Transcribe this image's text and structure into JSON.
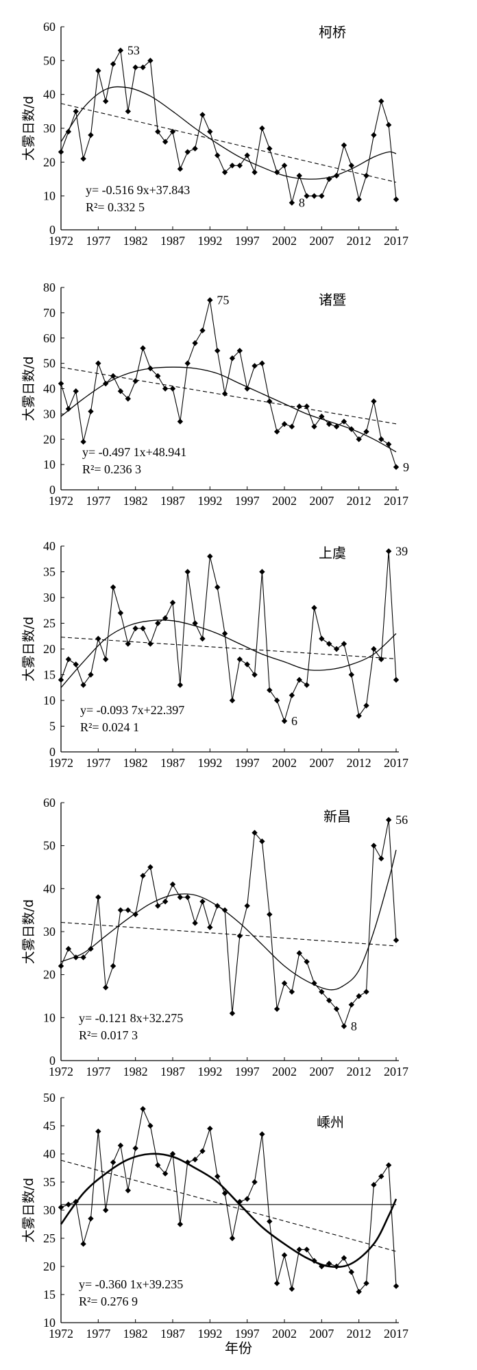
{
  "figure": {
    "xlabel": "年份",
    "ylabel": "大雾日数/d"
  },
  "chart_data": [
    {
      "type": "line",
      "title": "柯桥",
      "ylabel": "大雾日数/d",
      "xlabel": "",
      "xlim": [
        1972,
        2017
      ],
      "ylim": [
        0,
        60
      ],
      "x_ticks": [
        1972,
        1977,
        1982,
        1987,
        1992,
        1997,
        2002,
        2007,
        2012,
        2017
      ],
      "y_ticks": [
        0,
        10,
        20,
        30,
        40,
        50,
        60
      ],
      "x": [
        1972,
        1973,
        1974,
        1975,
        1976,
        1977,
        1978,
        1979,
        1980,
        1981,
        1982,
        1983,
        1984,
        1985,
        1986,
        1987,
        1988,
        1989,
        1990,
        1991,
        1992,
        1993,
        1994,
        1995,
        1996,
        1997,
        1998,
        1999,
        2000,
        2001,
        2002,
        2003,
        2004,
        2005,
        2006,
        2007,
        2008,
        2009,
        2010,
        2011,
        2012,
        2013,
        2014,
        2015,
        2016,
        2017
      ],
      "series": [
        {
          "values": [
            23,
            29,
            35,
            21,
            28,
            47,
            38,
            49,
            53,
            35,
            48,
            48,
            50,
            29,
            26,
            29,
            18,
            23,
            24,
            34,
            29,
            22,
            17,
            19,
            19,
            22,
            17,
            30,
            24,
            17,
            19,
            8,
            16,
            10,
            10,
            10,
            15,
            16,
            25,
            19,
            9,
            16,
            28,
            38,
            31,
            9
          ]
        }
      ],
      "trend": {
        "slope": -0.5169,
        "intercept": 37.843
      },
      "poly_fit": [
        [
          1972,
          26
        ],
        [
          1975,
          36
        ],
        [
          1978,
          41.5
        ],
        [
          1981,
          42
        ],
        [
          1984,
          39.5
        ],
        [
          1987,
          35
        ],
        [
          1990,
          30
        ],
        [
          1993,
          25.5
        ],
        [
          1996,
          21.5
        ],
        [
          1999,
          18.5
        ],
        [
          2002,
          16
        ],
        [
          2005,
          15
        ],
        [
          2008,
          15.5
        ],
        [
          2011,
          18
        ],
        [
          2014,
          21.5
        ],
        [
          2016,
          23
        ],
        [
          2017,
          22.5
        ]
      ],
      "equation": "y= -0.516 9x+37.843",
      "r2": "R²= 0.332 5",
      "annotations": [
        {
          "text": "53",
          "x": 1980,
          "y": 53
        },
        {
          "text": "8",
          "x": 2003,
          "y": 8
        }
      ]
    },
    {
      "type": "line",
      "title": "诸暨",
      "ylabel": "大雾日数/d",
      "xlabel": "",
      "xlim": [
        1972,
        2017
      ],
      "ylim": [
        0,
        80
      ],
      "x_ticks": [
        1972,
        1977,
        1982,
        1987,
        1992,
        1997,
        2002,
        2007,
        2012,
        2017
      ],
      "y_ticks": [
        0,
        10,
        20,
        30,
        40,
        50,
        60,
        70,
        80
      ],
      "x": [
        1972,
        1973,
        1974,
        1975,
        1976,
        1977,
        1978,
        1979,
        1980,
        1981,
        1982,
        1983,
        1984,
        1985,
        1986,
        1987,
        1988,
        1989,
        1990,
        1991,
        1992,
        1993,
        1994,
        1995,
        1996,
        1997,
        1998,
        1999,
        2000,
        2001,
        2002,
        2003,
        2004,
        2005,
        2006,
        2007,
        2008,
        2009,
        2010,
        2011,
        2012,
        2013,
        2014,
        2015,
        2016,
        2017
      ],
      "series": [
        {
          "values": [
            42,
            32,
            39,
            19,
            31,
            50,
            42,
            45,
            39,
            36,
            43,
            56,
            48,
            45,
            40,
            40,
            27,
            50,
            58,
            63,
            75,
            55,
            38,
            52,
            55,
            40,
            49,
            50,
            35,
            23,
            26,
            25,
            33,
            33,
            25,
            29,
            26,
            25,
            27,
            24,
            20,
            23,
            35,
            20,
            18,
            9
          ]
        }
      ],
      "trend": {
        "slope": -0.4971,
        "intercept": 48.941
      },
      "poly_fit": [
        [
          1972,
          29
        ],
        [
          1975,
          36
        ],
        [
          1978,
          42
        ],
        [
          1981,
          46
        ],
        [
          1984,
          48
        ],
        [
          1987,
          48.5
        ],
        [
          1990,
          48
        ],
        [
          1993,
          46
        ],
        [
          1996,
          42
        ],
        [
          1999,
          38
        ],
        [
          2002,
          34
        ],
        [
          2005,
          30
        ],
        [
          2008,
          27
        ],
        [
          2011,
          24
        ],
        [
          2014,
          20
        ],
        [
          2017,
          15
        ]
      ],
      "equation": "y= -0.497 1x+48.941",
      "r2": "R²= 0.236 3",
      "annotations": [
        {
          "text": "75",
          "x": 1992,
          "y": 75
        },
        {
          "text": "9",
          "x": 2017,
          "y": 9
        }
      ]
    },
    {
      "type": "line",
      "title": "上虞",
      "ylabel": "大雾日数/d",
      "xlabel": "",
      "xlim": [
        1972,
        2017
      ],
      "ylim": [
        0,
        40
      ],
      "x_ticks": [
        1972,
        1977,
        1982,
        1987,
        1992,
        1997,
        2002,
        2007,
        2012,
        2017
      ],
      "y_ticks": [
        0,
        5,
        10,
        15,
        20,
        25,
        30,
        35,
        40
      ],
      "x": [
        1972,
        1973,
        1974,
        1975,
        1976,
        1977,
        1978,
        1979,
        1980,
        1981,
        1982,
        1983,
        1984,
        1985,
        1986,
        1987,
        1988,
        1989,
        1990,
        1991,
        1992,
        1993,
        1994,
        1995,
        1996,
        1997,
        1998,
        1999,
        2000,
        2001,
        2002,
        2003,
        2004,
        2005,
        2006,
        2007,
        2008,
        2009,
        2010,
        2011,
        2012,
        2013,
        2014,
        2015,
        2016,
        2017
      ],
      "series": [
        {
          "values": [
            14,
            18,
            17,
            13,
            15,
            22,
            18,
            32,
            27,
            21,
            24,
            24,
            21,
            25,
            26,
            29,
            13,
            35,
            25,
            22,
            38,
            32,
            23,
            10,
            18,
            17,
            15,
            35,
            12,
            10,
            6,
            11,
            14,
            13,
            28,
            22,
            21,
            20,
            21,
            15,
            7,
            9,
            20,
            18,
            39,
            14
          ]
        }
      ],
      "trend": {
        "slope": -0.0937,
        "intercept": 22.397
      },
      "poly_fit": [
        [
          1972,
          12.5
        ],
        [
          1975,
          17.5
        ],
        [
          1978,
          22
        ],
        [
          1981,
          24.5
        ],
        [
          1984,
          25.5
        ],
        [
          1987,
          25.5
        ],
        [
          1990,
          24.5
        ],
        [
          1993,
          23
        ],
        [
          1996,
          21
        ],
        [
          1999,
          19
        ],
        [
          2002,
          17.5
        ],
        [
          2005,
          16
        ],
        [
          2008,
          16
        ],
        [
          2011,
          17
        ],
        [
          2014,
          19
        ],
        [
          2017,
          23
        ]
      ],
      "equation": "y= -0.093 7x+22.397",
      "r2": "R²= 0.024 1",
      "annotations": [
        {
          "text": "39",
          "x": 2016,
          "y": 39
        },
        {
          "text": "6",
          "x": 2002,
          "y": 6
        }
      ]
    },
    {
      "type": "line",
      "title": "新昌",
      "ylabel": "大雾日数/d",
      "xlabel": "",
      "xlim": [
        1972,
        2017
      ],
      "ylim": [
        0,
        60
      ],
      "x_ticks": [
        1972,
        1977,
        1982,
        1987,
        1992,
        1997,
        2002,
        2007,
        2012,
        2017
      ],
      "y_ticks": [
        0,
        10,
        20,
        30,
        40,
        50,
        60
      ],
      "x": [
        1972,
        1973,
        1974,
        1975,
        1976,
        1977,
        1978,
        1979,
        1980,
        1981,
        1982,
        1983,
        1984,
        1985,
        1986,
        1987,
        1988,
        1989,
        1990,
        1991,
        1992,
        1993,
        1994,
        1995,
        1996,
        1997,
        1998,
        1999,
        2000,
        2001,
        2002,
        2003,
        2004,
        2005,
        2006,
        2007,
        2008,
        2009,
        2010,
        2011,
        2012,
        2013,
        2014,
        2015,
        2016,
        2017
      ],
      "series": [
        {
          "values": [
            22,
            26,
            24,
            24,
            26,
            38,
            17,
            22,
            35,
            35,
            34,
            43,
            45,
            36,
            37,
            41,
            38,
            38,
            32,
            37,
            31,
            36,
            35,
            11,
            29,
            36,
            53,
            51,
            34,
            12,
            18,
            16,
            25,
            23,
            18,
            16,
            14,
            12,
            8,
            13,
            15,
            16,
            50,
            47,
            56,
            28
          ]
        }
      ],
      "trend": {
        "slope": -0.1218,
        "intercept": 32.275
      },
      "poly_fit": [
        [
          1972,
          23
        ],
        [
          1975,
          25
        ],
        [
          1978,
          29
        ],
        [
          1981,
          33
        ],
        [
          1984,
          36.5
        ],
        [
          1987,
          38.5
        ],
        [
          1990,
          38.5
        ],
        [
          1993,
          36
        ],
        [
          1996,
          32
        ],
        [
          1999,
          27
        ],
        [
          2002,
          22
        ],
        [
          2005,
          18.5
        ],
        [
          2008,
          16.5
        ],
        [
          2010,
          17.5
        ],
        [
          2012,
          21
        ],
        [
          2014,
          30
        ],
        [
          2016,
          42
        ],
        [
          2017,
          49
        ]
      ],
      "equation": "y= -0.121 8x+32.275",
      "r2": "R²= 0.017 3",
      "annotations": [
        {
          "text": "56",
          "x": 2016,
          "y": 56
        },
        {
          "text": "8",
          "x": 2010,
          "y": 8
        }
      ]
    },
    {
      "type": "line",
      "title": "嵊州",
      "ylabel": "大雾日数/d",
      "xlabel": "年份",
      "xlim": [
        1972,
        2017
      ],
      "ylim": [
        10,
        50
      ],
      "x_ticks": [
        1972,
        1977,
        1982,
        1987,
        1992,
        1997,
        2002,
        2007,
        2012,
        2017
      ],
      "y_ticks": [
        10,
        15,
        20,
        25,
        30,
        35,
        40,
        45,
        50
      ],
      "x": [
        1972,
        1973,
        1974,
        1975,
        1976,
        1977,
        1978,
        1979,
        1980,
        1981,
        1982,
        1983,
        1984,
        1985,
        1986,
        1987,
        1988,
        1989,
        1990,
        1991,
        1992,
        1993,
        1994,
        1995,
        1996,
        1997,
        1998,
        1999,
        2000,
        2001,
        2002,
        2003,
        2004,
        2005,
        2006,
        2007,
        2008,
        2009,
        2010,
        2011,
        2012,
        2013,
        2014,
        2015,
        2016,
        2017
      ],
      "series": [
        {
          "values": [
            30.5,
            31,
            31.5,
            24,
            28.5,
            44,
            30,
            38.5,
            41.5,
            33.5,
            41,
            48,
            45,
            38,
            36.5,
            40,
            27.5,
            38.5,
            39,
            40.5,
            44.5,
            36,
            33,
            25,
            31.5,
            32,
            35,
            43.5,
            28,
            17,
            22,
            16,
            23,
            23,
            21,
            20,
            20.5,
            20,
            21.5,
            19,
            15.5,
            17,
            34.5,
            36,
            38,
            16.5
          ]
        }
      ],
      "trend": {
        "slope": -0.3601,
        "intercept": 39.235
      },
      "mean_line": 31,
      "poly_fit": [
        [
          1972,
          27.5
        ],
        [
          1975,
          33
        ],
        [
          1978,
          36.5
        ],
        [
          1981,
          39
        ],
        [
          1984,
          40
        ],
        [
          1987,
          39.5
        ],
        [
          1990,
          37.5
        ],
        [
          1993,
          35
        ],
        [
          1996,
          31
        ],
        [
          1999,
          27
        ],
        [
          2002,
          24
        ],
        [
          2005,
          21.5
        ],
        [
          2008,
          20
        ],
        [
          2011,
          20.5
        ],
        [
          2014,
          24
        ],
        [
          2016,
          29
        ],
        [
          2017,
          32
        ]
      ],
      "equation": "y= -0.360 1x+39.235",
      "r2": "R²= 0.276 9",
      "annotations": []
    }
  ]
}
